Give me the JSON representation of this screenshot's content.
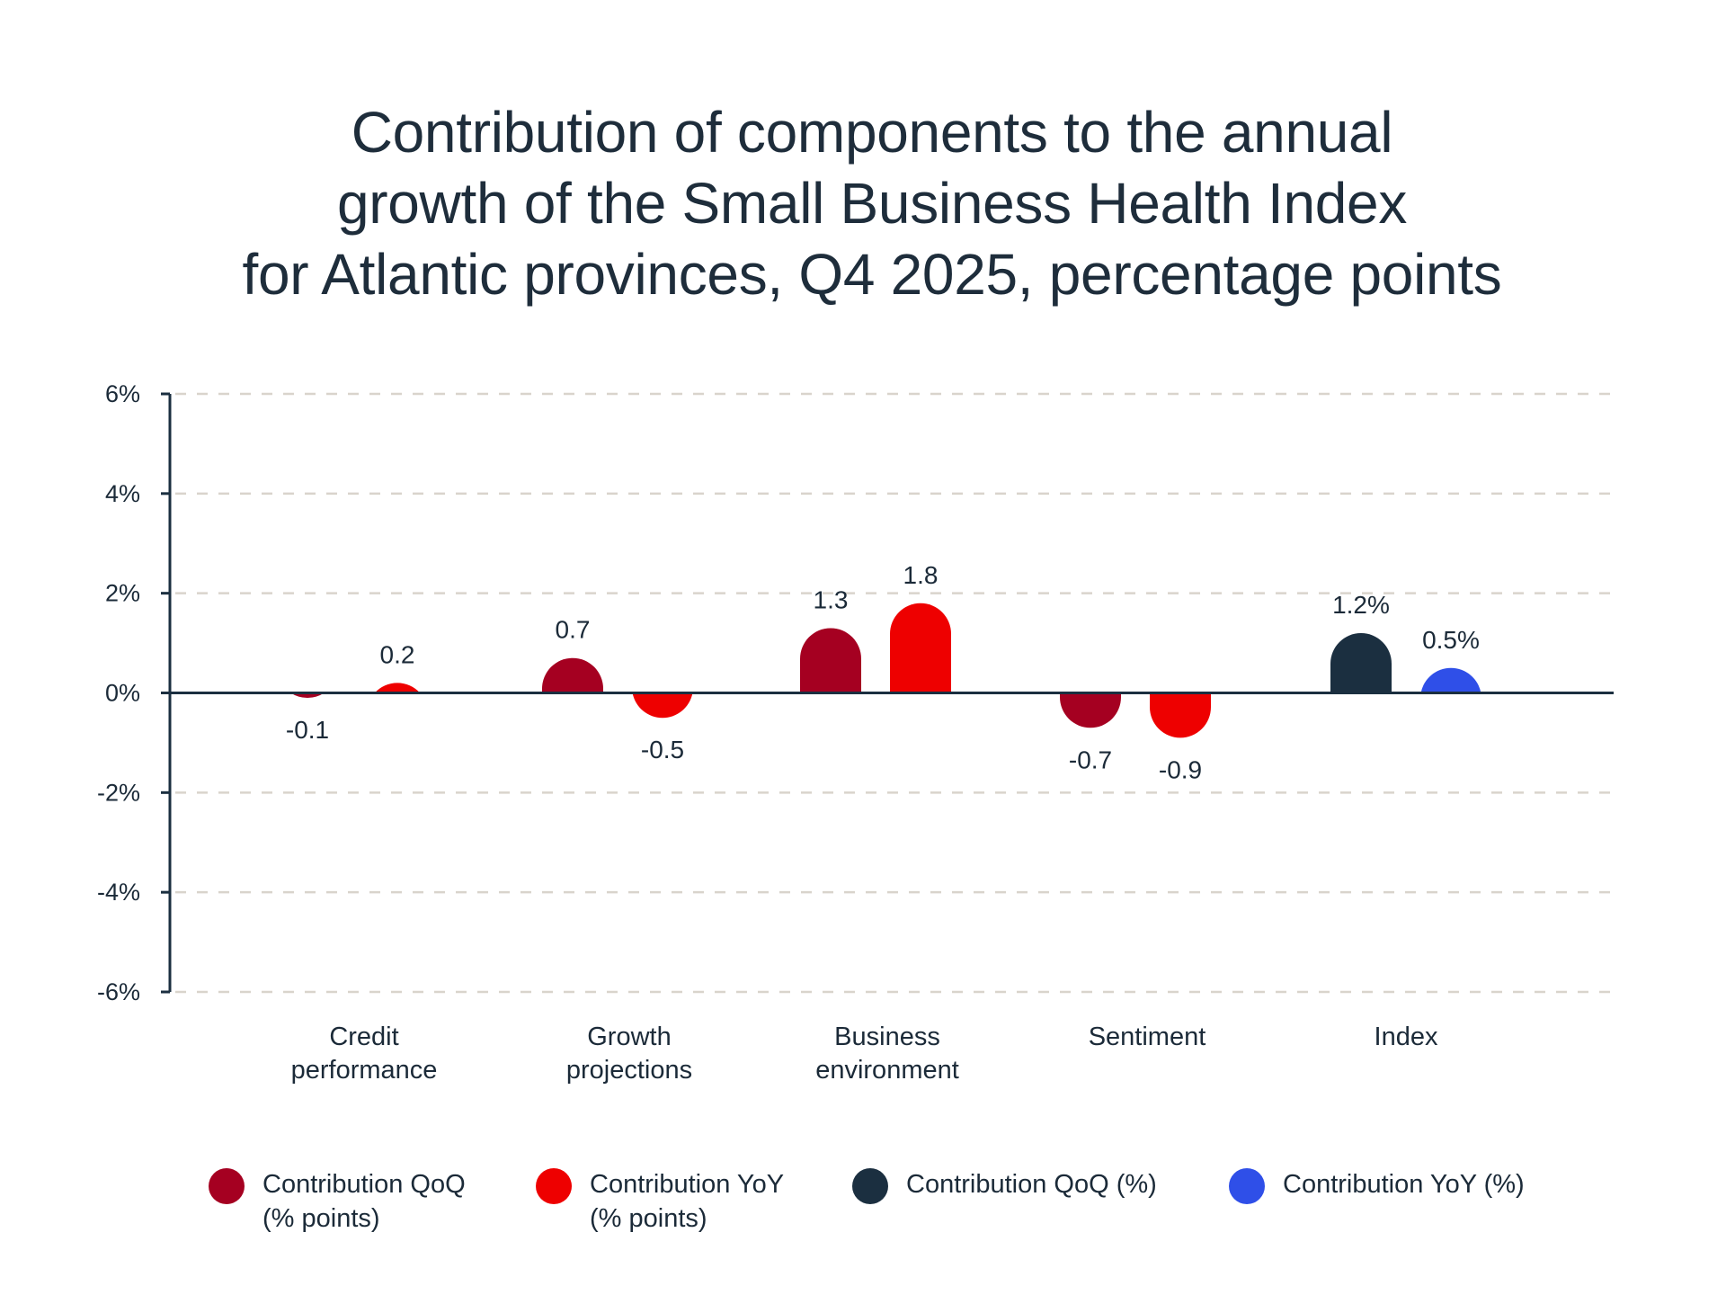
{
  "title_lines": [
    "Contribution of components to the annual",
    "growth of the Small Business Health Index",
    "for Atlantic provinces, Q4 2025, percentage points"
  ],
  "chart_data": {
    "type": "bar",
    "title": "Contribution of components to the annual growth of the Small Business Health Index for Atlantic provinces, Q4 2025, percentage points",
    "xlabel": "",
    "ylabel": "",
    "ylim": [
      -6,
      6
    ],
    "yticks": [
      6,
      4,
      2,
      0,
      -2,
      -4,
      -6
    ],
    "ytick_labels": [
      "6%",
      "4%",
      "2%",
      "0%",
      "-2%",
      "-4%",
      "-6%"
    ],
    "grid": true,
    "legend_position": "bottom",
    "categories": [
      [
        "Credit",
        "performance"
      ],
      [
        "Growth",
        "projections"
      ],
      [
        "Business",
        "environment"
      ],
      [
        "Sentiment"
      ],
      [
        "Index"
      ]
    ],
    "bars": [
      {
        "category": 0,
        "series": 0,
        "value": -0.1,
        "label": "-0.1"
      },
      {
        "category": 0,
        "series": 1,
        "value": 0.2,
        "label": "0.2"
      },
      {
        "category": 1,
        "series": 0,
        "value": 0.7,
        "label": "0.7"
      },
      {
        "category": 1,
        "series": 1,
        "value": -0.5,
        "label": "-0.5"
      },
      {
        "category": 2,
        "series": 0,
        "value": 1.3,
        "label": "1.3"
      },
      {
        "category": 2,
        "series": 1,
        "value": 1.8,
        "label": "1.8"
      },
      {
        "category": 3,
        "series": 0,
        "value": -0.7,
        "label": "-0.7"
      },
      {
        "category": 3,
        "series": 1,
        "value": -0.9,
        "label": "-0.9"
      },
      {
        "category": 4,
        "series": 2,
        "value": 1.2,
        "label": "1.2%"
      },
      {
        "category": 4,
        "series": 3,
        "value": 0.5,
        "label": "0.5%"
      }
    ],
    "series": [
      {
        "name": "Contribution QoQ\n(% points)",
        "color": "#a50021"
      },
      {
        "name": "Contribution YoY\n(% points)",
        "color": "#ee0000"
      },
      {
        "name": "Contribution QoQ (%)",
        "color": "#1b2f40"
      },
      {
        "name": "Contribution YoY (%)",
        "color": "#2f4fe8"
      }
    ]
  },
  "colors": {
    "axis": "#1b2f40",
    "grid": "#d9d4cc",
    "text": "#1b2a38"
  }
}
